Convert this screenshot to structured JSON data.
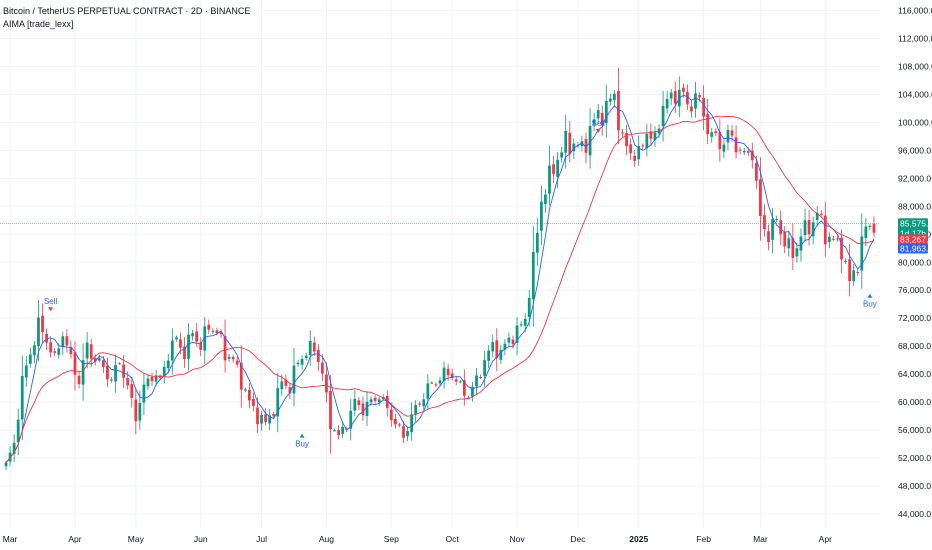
{
  "header": {
    "title": "Bitcoin / TetherUS PERPETUAL CONTRACT · 2D · BINANCE",
    "indicator": "AIMA [trade_lexx]"
  },
  "colors": {
    "up": "#089981",
    "down": "#f23645",
    "fast_ma": "#2962ff",
    "slow_ma": "#f23645",
    "price_line": "#089981",
    "grid": "#f0f3fa"
  },
  "chart_data": {
    "type": "candlestick",
    "title": "Bitcoin / TetherUS PERPETUAL CONTRACT · 2D · BINANCE",
    "y_ticks": [
      44000,
      48000,
      52000,
      56000,
      60000,
      64000,
      68000,
      72000,
      76000,
      80000,
      84000,
      88000,
      92000,
      96000,
      100000,
      104000,
      108000,
      112000,
      116000
    ],
    "y_tick_labels": [
      "44,000.0",
      "48,000.0",
      "52,000.0",
      "56,000.0",
      "60,000.0",
      "64,000.0",
      "68,000.0",
      "72,000.0",
      "76,000.0",
      "80,000.0",
      "84,000.0",
      "88,000.0",
      "92,000.0",
      "96,000.0",
      "100,000.0",
      "104,000.0",
      "108,000.0",
      "112,000.0",
      "116,000.0"
    ],
    "ylim": [
      42000,
      117500
    ],
    "x_labels": [
      {
        "label": "Mar",
        "index": 1
      },
      {
        "label": "Apr",
        "index": 17
      },
      {
        "label": "May",
        "index": 32
      },
      {
        "label": "Jun",
        "index": 48
      },
      {
        "label": "Jul",
        "index": 63
      },
      {
        "label": "Aug",
        "index": 79
      },
      {
        "label": "Sep",
        "index": 95
      },
      {
        "label": "Oct",
        "index": 110
      },
      {
        "label": "Nov",
        "index": 126
      },
      {
        "label": "Dec",
        "index": 141
      },
      {
        "label": "2025",
        "index": 156
      },
      {
        "label": "Feb",
        "index": 172
      },
      {
        "label": "Mar",
        "index": 186
      },
      {
        "label": "Apr",
        "index": 202
      }
    ],
    "keypoints": [
      [
        0,
        51000
      ],
      [
        2,
        54000
      ],
      [
        4,
        63000
      ],
      [
        6,
        67000
      ],
      [
        8,
        71000
      ],
      [
        10,
        69000
      ],
      [
        12,
        66000
      ],
      [
        14,
        70000
      ],
      [
        16,
        66000
      ],
      [
        18,
        63000
      ],
      [
        20,
        68000
      ],
      [
        22,
        66000
      ],
      [
        24,
        65000
      ],
      [
        26,
        63000
      ],
      [
        28,
        66000
      ],
      [
        30,
        62000
      ],
      [
        32,
        58000
      ],
      [
        34,
        62000
      ],
      [
        36,
        64000
      ],
      [
        38,
        63000
      ],
      [
        40,
        67000
      ],
      [
        42,
        69000
      ],
      [
        44,
        67000
      ],
      [
        46,
        70000
      ],
      [
        48,
        68000
      ],
      [
        50,
        71000
      ],
      [
        52,
        70000
      ],
      [
        54,
        67000
      ],
      [
        56,
        66000
      ],
      [
        58,
        63000
      ],
      [
        60,
        60000
      ],
      [
        62,
        58000
      ],
      [
        64,
        57000
      ],
      [
        66,
        59000
      ],
      [
        68,
        63000
      ],
      [
        70,
        62000
      ],
      [
        72,
        66000
      ],
      [
        74,
        67000
      ],
      [
        76,
        68000
      ],
      [
        78,
        64000
      ],
      [
        80,
        57000
      ],
      [
        82,
        55000
      ],
      [
        84,
        57000
      ],
      [
        86,
        60000
      ],
      [
        88,
        59000
      ],
      [
        90,
        60000
      ],
      [
        92,
        61000
      ],
      [
        94,
        59000
      ],
      [
        96,
        57000
      ],
      [
        98,
        55000
      ],
      [
        100,
        58000
      ],
      [
        102,
        60000
      ],
      [
        104,
        62000
      ],
      [
        106,
        63000
      ],
      [
        108,
        64000
      ],
      [
        110,
        64000
      ],
      [
        112,
        62000
      ],
      [
        114,
        61000
      ],
      [
        116,
        63000
      ],
      [
        118,
        66000
      ],
      [
        120,
        68000
      ],
      [
        122,
        67000
      ],
      [
        124,
        69000
      ],
      [
        126,
        70000
      ],
      [
        128,
        72000
      ],
      [
        130,
        80000
      ],
      [
        132,
        89000
      ],
      [
        134,
        92000
      ],
      [
        136,
        95000
      ],
      [
        138,
        97000
      ],
      [
        140,
        97000
      ],
      [
        142,
        96000
      ],
      [
        144,
        99000
      ],
      [
        146,
        101000
      ],
      [
        148,
        102000
      ],
      [
        150,
        104000
      ],
      [
        152,
        97000
      ],
      [
        154,
        96000
      ],
      [
        156,
        95000
      ],
      [
        158,
        99000
      ],
      [
        160,
        97000
      ],
      [
        162,
        103000
      ],
      [
        164,
        103000
      ],
      [
        166,
        105000
      ],
      [
        168,
        102000
      ],
      [
        170,
        104000
      ],
      [
        172,
        101000
      ],
      [
        174,
        98000
      ],
      [
        176,
        97000
      ],
      [
        178,
        98000
      ],
      [
        180,
        97000
      ],
      [
        182,
        95000
      ],
      [
        184,
        96000
      ],
      [
        186,
        86000
      ],
      [
        188,
        84000
      ],
      [
        190,
        86000
      ],
      [
        192,
        83000
      ],
      [
        194,
        81000
      ],
      [
        196,
        84000
      ],
      [
        198,
        85000
      ],
      [
        200,
        87000
      ],
      [
        202,
        84000
      ],
      [
        204,
        83000
      ],
      [
        206,
        82000
      ],
      [
        208,
        77000
      ],
      [
        210,
        80000
      ],
      [
        212,
        85000
      ],
      [
        214,
        85500
      ]
    ],
    "series": [
      {
        "name": "AIMA fast",
        "type": "ma",
        "period": 5
      },
      {
        "name": "AIMA slow",
        "type": "ma",
        "period": 20
      }
    ],
    "signals": [
      {
        "text": "Sell",
        "index": 11,
        "price": 73000,
        "kind": "sell"
      },
      {
        "text": "Buy",
        "index": 73,
        "price": 55500,
        "kind": "buy"
      },
      {
        "text": "Sell",
        "index": 146,
        "price": 98500,
        "kind": "sell"
      },
      {
        "text": "Buy",
        "index": 213,
        "price": 75500,
        "kind": "buy"
      }
    ],
    "price_badges": [
      {
        "value": 85575.3,
        "label": "85,575.3",
        "sub": "1d 17h",
        "color": "#089981"
      },
      {
        "value": 83267.1,
        "label": "83,267.1",
        "color": "#f23645"
      },
      {
        "value": 81963.7,
        "label": "81,963.7",
        "color": "#2962ff"
      }
    ],
    "grid": true
  }
}
